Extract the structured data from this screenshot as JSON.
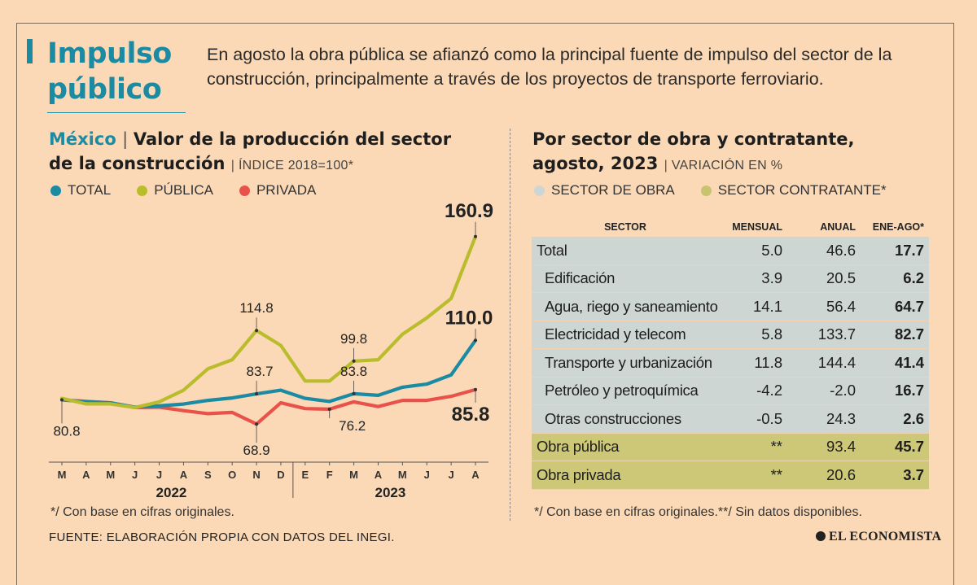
{
  "header": {
    "title": "Impulso público",
    "intro": "En agosto la obra pública se afianzó como la principal fuente de impulso del sector de la construcción, principalmente a través de los proyectos de transporte ferroviario."
  },
  "left": {
    "title_accent": "México",
    "title_main": "Valor de la producción del sector",
    "title_line2": "de la construcción",
    "title_unit": "ÍNDICE 2018=100*",
    "note": "*/ Con base en cifras originales."
  },
  "right": {
    "title_line1": "Por sector de obra y contratante,",
    "title_line2": "agosto, 2023",
    "title_unit": "VARIACIÓN EN %",
    "legend": [
      {
        "label": "SECTOR DE OBRA",
        "color": "#cdd6d2"
      },
      {
        "label": "SECTOR CONTRATANTE*",
        "color": "#c7c36f"
      }
    ],
    "note": "*/ Con base en cifras originales.**/ Sin datos disponibles."
  },
  "footer": {
    "source": "FUENTE: ELABORACIÓN PROPIA CON DATOS DEL INEGI.",
    "brand": "EL ECONOMISTA"
  },
  "chart_data": [
    {
      "type": "line",
      "title": "Valor de la producción del sector de la construcción",
      "ylabel": "ÍNDICE 2018=100*",
      "x": [
        "M",
        "A",
        "M",
        "J",
        "J",
        "A",
        "S",
        "O",
        "N",
        "D",
        "E",
        "F",
        "M",
        "A",
        "M",
        "J",
        "J",
        "A"
      ],
      "year_labels": [
        {
          "label": "2022",
          "span": [
            0,
            9
          ]
        },
        {
          "label": "2023",
          "span": [
            10,
            17
          ]
        }
      ],
      "ylim": [
        55,
        170
      ],
      "legend_position": "top-left",
      "series": [
        {
          "name": "TOTAL",
          "color": "#1b8aa3",
          "values": [
            80.8,
            79.8,
            79.3,
            77.2,
            77.8,
            78.7,
            80.5,
            81.7,
            83.7,
            85.5,
            81.5,
            80.0,
            83.8,
            83.0,
            87.0,
            88.5,
            93.0,
            110.0
          ]
        },
        {
          "name": "PÚBLICA",
          "color": "#b9bd2c",
          "values": [
            81.5,
            78.8,
            78.8,
            77.0,
            79.8,
            85.5,
            96.0,
            100.5,
            114.8,
            107.5,
            90.0,
            90.0,
            99.8,
            100.5,
            113.0,
            121.0,
            130.5,
            160.9
          ]
        },
        {
          "name": "PRIVADA",
          "color": "#e8524a",
          "values": [
            80.8,
            80.0,
            79.3,
            77.0,
            77.2,
            75.5,
            74.0,
            74.6,
            68.9,
            79.3,
            76.5,
            76.2,
            79.8,
            77.5,
            80.5,
            80.5,
            82.5,
            85.8
          ]
        }
      ],
      "annotations": [
        {
          "text": "80.8",
          "series": "PRIVADA",
          "index": 0
        },
        {
          "text": "83.7",
          "series": "TOTAL",
          "index": 8
        },
        {
          "text": "114.8",
          "series": "PÚBLICA",
          "index": 8
        },
        {
          "text": "68.9",
          "series": "PRIVADA",
          "index": 8
        },
        {
          "text": "99.8",
          "series": "PÚBLICA",
          "index": 12
        },
        {
          "text": "83.8",
          "series": "TOTAL",
          "index": 12
        },
        {
          "text": "76.2",
          "series": "PRIVADA",
          "index": 11
        },
        {
          "text": "160.9",
          "series": "PÚBLICA",
          "index": 17
        },
        {
          "text": "110.0",
          "series": "TOTAL",
          "index": 17
        },
        {
          "text": "85.8",
          "series": "PRIVADA",
          "index": 17
        }
      ]
    },
    {
      "type": "table",
      "columns": [
        "SECTOR",
        "MENSUAL",
        "ANUAL",
        "ENE-AGO*"
      ],
      "rows": [
        {
          "group": "obra",
          "indent": false,
          "cells": [
            "Total",
            "5.0",
            "46.6",
            "17.7"
          ]
        },
        {
          "group": "obra",
          "indent": true,
          "cells": [
            "Edificación",
            "3.9",
            "20.5",
            "6.2"
          ]
        },
        {
          "group": "obra",
          "indent": true,
          "cells": [
            "Agua, riego y saneamiento",
            "14.1",
            "56.4",
            "64.7"
          ]
        },
        {
          "group": "obra",
          "indent": true,
          "cells": [
            "Electricidad y telecom",
            "5.8",
            "133.7",
            "82.7"
          ]
        },
        {
          "group": "obra",
          "indent": true,
          "cells": [
            "Transporte y urbanización",
            "11.8",
            "144.4",
            "41.4"
          ]
        },
        {
          "group": "obra",
          "indent": true,
          "cells": [
            "Petróleo y petroquímica",
            "-4.2",
            "-2.0",
            "16.7"
          ]
        },
        {
          "group": "obra",
          "indent": true,
          "cells": [
            "Otras construcciones",
            "-0.5",
            "24.3",
            "2.6"
          ]
        },
        {
          "group": "contr",
          "indent": false,
          "cells": [
            "Obra pública",
            "**",
            "93.4",
            "45.7"
          ]
        },
        {
          "group": "contr",
          "indent": false,
          "cells": [
            "Obra privada",
            "**",
            "20.6",
            "3.7"
          ]
        }
      ]
    }
  ]
}
